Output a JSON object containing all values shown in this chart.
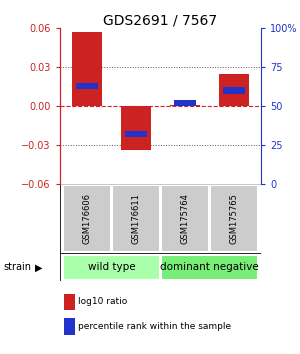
{
  "title": "GDS2691 / 7567",
  "samples": [
    "GSM176606",
    "GSM176611",
    "GSM175764",
    "GSM175765"
  ],
  "log10_ratio": [
    0.057,
    -0.034,
    0.001,
    0.025
  ],
  "percentile_rank": [
    63,
    32,
    52,
    60
  ],
  "ylim_left": [
    -0.06,
    0.06
  ],
  "ylim_right": [
    0,
    100
  ],
  "yticks_left": [
    -0.06,
    -0.03,
    0,
    0.03,
    0.06
  ],
  "yticks_right": [
    0,
    25,
    50,
    75,
    100
  ],
  "bar_width": 0.6,
  "red_color": "#cc2222",
  "blue_color": "#2233cc",
  "zero_line_color": "#cc2222",
  "dotted_line_color": "#555555",
  "groups": [
    {
      "label": "wild type",
      "samples": [
        0,
        1
      ],
      "color": "#aaffaa"
    },
    {
      "label": "dominant negative",
      "samples": [
        2,
        3
      ],
      "color": "#77ee77"
    }
  ],
  "strain_label": "strain",
  "legend_red": "log10 ratio",
  "legend_blue": "percentile rank within the sample",
  "title_fontsize": 10,
  "tick_fontsize": 7,
  "label_fontsize": 7,
  "group_fontsize": 7.5
}
